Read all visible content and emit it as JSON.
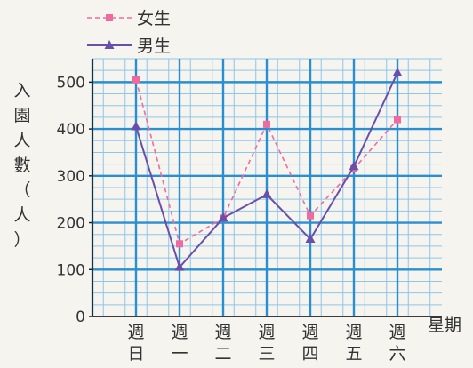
{
  "chart_data": {
    "type": "line",
    "ylabel": "入園人數（人）",
    "xlabel": "星期",
    "categories": [
      "週日",
      "週一",
      "週二",
      "週三",
      "週四",
      "週五",
      "週六"
    ],
    "ylim": [
      0,
      550
    ],
    "yticks": [
      0,
      100,
      200,
      300,
      400,
      500
    ],
    "grid": true,
    "legend_position": "top-left",
    "series": [
      {
        "name": "女生",
        "values": [
          505,
          155,
          210,
          410,
          215,
          315,
          420
        ],
        "color": "#f06aa0",
        "dash": true,
        "marker": "square"
      },
      {
        "name": "男生",
        "values": [
          405,
          105,
          210,
          260,
          165,
          320,
          520
        ],
        "color": "#6a4fa8",
        "dash": false,
        "marker": "triangle"
      }
    ]
  }
}
